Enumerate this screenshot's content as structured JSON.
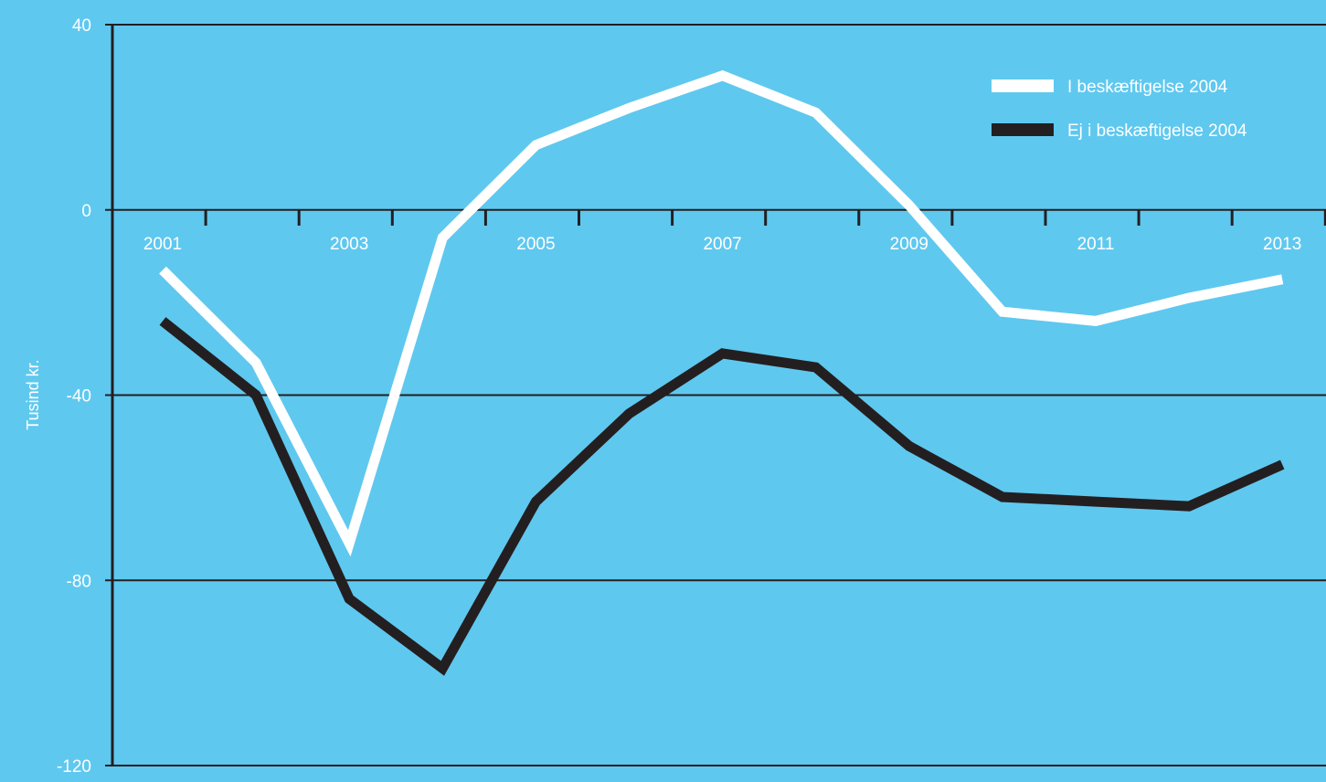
{
  "chart_data": {
    "type": "line",
    "title": "",
    "xlabel": "",
    "ylabel": "Tusind kr.",
    "x": [
      2001,
      2002,
      2003,
      2004,
      2005,
      2006,
      2007,
      2008,
      2009,
      2010,
      2011,
      2012,
      2013
    ],
    "x_tick_labels": [
      "2001",
      "2003",
      "2005",
      "2007",
      "2009",
      "2011",
      "2013"
    ],
    "y_ticks": [
      40,
      0,
      -40,
      -80,
      -120
    ],
    "y_tick_labels": [
      "40",
      "0",
      "-40",
      "-80",
      "-120"
    ],
    "ylim": [
      -120,
      40
    ],
    "grid": true,
    "legend_position": "top-right",
    "background_color": "#5fc8ef",
    "series": [
      {
        "name": "I beskæftigelse 2004",
        "color": "#ffffff",
        "values": [
          -13,
          -33,
          -72,
          -6,
          14,
          22,
          29,
          21,
          1,
          -22,
          -24,
          -19,
          -15
        ]
      },
      {
        "name": "Ej i beskæftigelse 2004",
        "color": "#231f20",
        "values": [
          -24,
          -40,
          -84,
          -99,
          -63,
          -44,
          -31,
          -34,
          -51,
          -62,
          -63,
          -64,
          -55
        ]
      }
    ]
  }
}
